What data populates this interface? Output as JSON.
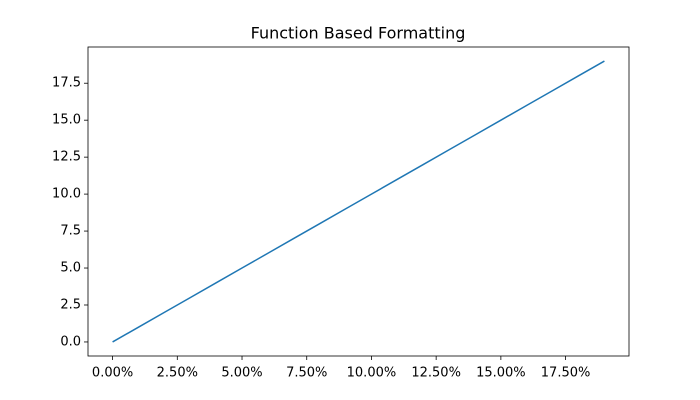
{
  "chart_data": {
    "type": "line",
    "title": "Function Based Formatting",
    "x": [
      0,
      1,
      2,
      3,
      4,
      5,
      6,
      7,
      8,
      9,
      10,
      11,
      12,
      13,
      14,
      15,
      16,
      17,
      18,
      19
    ],
    "values": [
      0,
      1,
      2,
      3,
      4,
      5,
      6,
      7,
      8,
      9,
      10,
      11,
      12,
      13,
      14,
      15,
      16,
      17,
      18,
      19
    ],
    "color": "#1f77b4",
    "xlim": [
      -0.95,
      19.95
    ],
    "xticks": [
      {
        "value": 0,
        "label": "0.00%"
      },
      {
        "value": 2.5,
        "label": "2.50%"
      },
      {
        "value": 5,
        "label": "5.00%"
      },
      {
        "value": 7.5,
        "label": "7.50%"
      },
      {
        "value": 10,
        "label": "10.00%"
      },
      {
        "value": 12.5,
        "label": "12.50%"
      },
      {
        "value": 15,
        "label": "15.00%"
      },
      {
        "value": 17.5,
        "label": "17.50%"
      }
    ],
    "ylim": [
      -0.95,
      19.95
    ],
    "yticks": [
      {
        "value": 0,
        "label": "0.0"
      },
      2.5,
      {
        "value": 5,
        "label": "5.0"
      },
      7.5,
      {
        "value": 10,
        "label": "10.0"
      },
      12.5,
      {
        "value": 15,
        "label": "15.0"
      },
      17.5
    ],
    "grid": false
  }
}
